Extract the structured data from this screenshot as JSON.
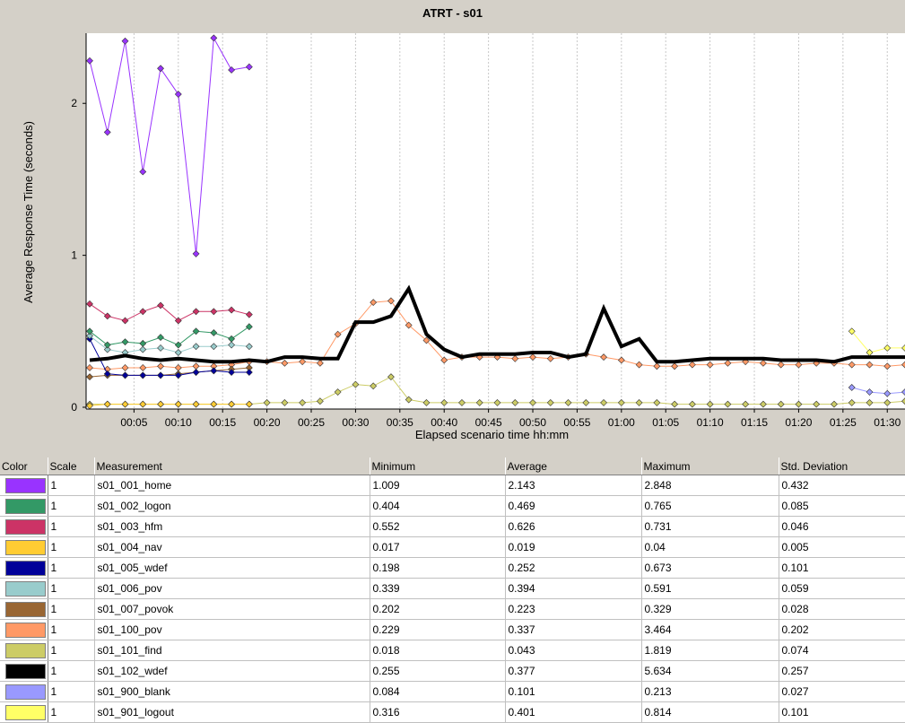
{
  "chart_data": {
    "type": "line",
    "title": "ATRT - s01",
    "xlabel": "Elapsed scenario time hh:mm",
    "ylabel": "Average Response Time (seconds)",
    "xlim": [
      0,
      92
    ],
    "ylim": [
      0,
      2.45
    ],
    "y_ticks": [
      0,
      1,
      2
    ],
    "x_ticks": [
      "00:05",
      "00:10",
      "00:15",
      "00:20",
      "00:25",
      "00:30",
      "00:35",
      "00:40",
      "00:45",
      "00:50",
      "00:55",
      "01:00",
      "01:05",
      "01:10",
      "01:15",
      "01:20",
      "01:25",
      "01:30"
    ],
    "grid": true,
    "series": [
      {
        "name": "s01_001_home",
        "color": "#9933ff",
        "x": [
          0,
          2,
          4,
          6,
          8,
          10,
          12,
          14,
          16,
          18
        ],
        "values": [
          2.28,
          1.81,
          2.41,
          1.55,
          2.23,
          2.06,
          1.01,
          2.43,
          2.22,
          2.24
        ]
      },
      {
        "name": "s01_002_logon",
        "color": "#339966",
        "x": [
          0,
          2,
          4,
          6,
          8,
          10,
          12,
          14,
          16,
          18
        ],
        "values": [
          0.5,
          0.41,
          0.43,
          0.42,
          0.46,
          0.41,
          0.5,
          0.49,
          0.45,
          0.53
        ]
      },
      {
        "name": "s01_003_hfm",
        "color": "#cc3366",
        "x": [
          0,
          2,
          4,
          6,
          8,
          10,
          12,
          14,
          16,
          18
        ],
        "values": [
          0.68,
          0.6,
          0.57,
          0.63,
          0.67,
          0.57,
          0.63,
          0.63,
          0.64,
          0.61
        ]
      },
      {
        "name": "s01_004_nav",
        "color": "#ffcc33",
        "x": [
          0,
          2,
          4,
          6,
          8,
          10,
          12,
          14,
          16,
          18
        ],
        "values": [
          0.01,
          0.02,
          0.02,
          0.02,
          0.02,
          0.02,
          0.02,
          0.02,
          0.02,
          0.02
        ]
      },
      {
        "name": "s01_005_wdef",
        "color": "#000099",
        "x": [
          0,
          2,
          4,
          6,
          8,
          10,
          12,
          14,
          16,
          18
        ],
        "values": [
          0.45,
          0.22,
          0.21,
          0.21,
          0.21,
          0.21,
          0.23,
          0.24,
          0.23,
          0.23
        ]
      },
      {
        "name": "s01_006_pov",
        "color": "#99cccc",
        "x": [
          0,
          2,
          4,
          6,
          8,
          10,
          12,
          14,
          16,
          18
        ],
        "values": [
          0.47,
          0.38,
          0.36,
          0.38,
          0.39,
          0.36,
          0.4,
          0.4,
          0.41,
          0.4
        ]
      },
      {
        "name": "s01_007_povok",
        "color": "#996633",
        "x": [
          0,
          2,
          4,
          6,
          8,
          10,
          12,
          14,
          16,
          18
        ],
        "values": [
          0.2,
          0.21,
          0.21,
          0.21,
          0.21,
          0.22,
          0.23,
          0.24,
          0.25,
          0.26
        ]
      },
      {
        "name": "s01_100_pov",
        "color": "#ff9966",
        "x": [
          0,
          2,
          4,
          6,
          8,
          10,
          12,
          14,
          16,
          18,
          20,
          22,
          24,
          26,
          28,
          30,
          32,
          34,
          36,
          38,
          40,
          42,
          44,
          46,
          48,
          50,
          52,
          54,
          56,
          58,
          60,
          62,
          64,
          66,
          68,
          70,
          72,
          74,
          76,
          78,
          80,
          82,
          84,
          86,
          88,
          90,
          92
        ],
        "values": [
          0.26,
          0.25,
          0.26,
          0.26,
          0.27,
          0.26,
          0.27,
          0.27,
          0.28,
          0.3,
          0.3,
          0.29,
          0.3,
          0.29,
          0.48,
          0.55,
          0.69,
          0.7,
          0.54,
          0.44,
          0.31,
          0.33,
          0.33,
          0.33,
          0.32,
          0.33,
          0.32,
          0.33,
          0.35,
          0.33,
          0.31,
          0.28,
          0.27,
          0.27,
          0.28,
          0.28,
          0.29,
          0.3,
          0.29,
          0.28,
          0.28,
          0.29,
          0.29,
          0.28,
          0.28,
          0.27,
          0.28
        ]
      },
      {
        "name": "s01_101_find",
        "color": "#cccc66",
        "x": [
          0,
          2,
          4,
          6,
          8,
          10,
          12,
          14,
          16,
          18,
          20,
          22,
          24,
          26,
          28,
          30,
          32,
          34,
          36,
          38,
          40,
          42,
          44,
          46,
          48,
          50,
          52,
          54,
          56,
          58,
          60,
          62,
          64,
          66,
          68,
          70,
          72,
          74,
          76,
          78,
          80,
          82,
          84,
          86,
          88,
          90,
          92
        ],
        "values": [
          0.02,
          0.02,
          0.02,
          0.02,
          0.02,
          0.02,
          0.02,
          0.02,
          0.02,
          0.02,
          0.03,
          0.03,
          0.03,
          0.04,
          0.1,
          0.15,
          0.14,
          0.2,
          0.05,
          0.03,
          0.03,
          0.03,
          0.03,
          0.03,
          0.03,
          0.03,
          0.03,
          0.03,
          0.03,
          0.03,
          0.03,
          0.03,
          0.03,
          0.02,
          0.02,
          0.02,
          0.02,
          0.02,
          0.02,
          0.02,
          0.02,
          0.02,
          0.02,
          0.03,
          0.03,
          0.03,
          0.04
        ]
      },
      {
        "name": "s01_102_wdef",
        "color": "#000000",
        "x": [
          0,
          2,
          4,
          6,
          8,
          10,
          12,
          14,
          16,
          18,
          20,
          22,
          24,
          26,
          28,
          30,
          32,
          34,
          36,
          38,
          40,
          42,
          44,
          46,
          48,
          50,
          52,
          54,
          56,
          58,
          60,
          62,
          64,
          66,
          68,
          70,
          72,
          74,
          76,
          78,
          80,
          82,
          84,
          86,
          88,
          90,
          92
        ],
        "values": [
          0.31,
          0.32,
          0.34,
          0.32,
          0.31,
          0.32,
          0.31,
          0.3,
          0.3,
          0.31,
          0.3,
          0.33,
          0.33,
          0.32,
          0.32,
          0.56,
          0.56,
          0.6,
          0.78,
          0.48,
          0.38,
          0.33,
          0.35,
          0.35,
          0.35,
          0.36,
          0.36,
          0.33,
          0.35,
          0.65,
          0.4,
          0.45,
          0.3,
          0.3,
          0.31,
          0.32,
          0.32,
          0.32,
          0.32,
          0.31,
          0.31,
          0.31,
          0.3,
          0.33,
          0.33,
          0.33,
          0.33
        ]
      },
      {
        "name": "s01_900_blank",
        "color": "#9999ff",
        "x": [
          86,
          88,
          90,
          92
        ],
        "values": [
          0.13,
          0.1,
          0.09,
          0.1
        ]
      },
      {
        "name": "s01_901_logout",
        "color": "#ffff66",
        "x": [
          86,
          88,
          90,
          92
        ],
        "values": [
          0.5,
          0.36,
          0.39,
          0.39
        ]
      }
    ]
  },
  "legend_table": {
    "headers": [
      "Color",
      "Scale",
      "Measurement",
      "Minimum",
      "Average",
      "Maximum",
      "Std. Deviation"
    ],
    "rows": [
      {
        "color": "#9933ff",
        "scale": "1",
        "measurement": "s01_001_home",
        "min": "1.009",
        "avg": "2.143",
        "max": "2.848",
        "std": "0.432"
      },
      {
        "color": "#339966",
        "scale": "1",
        "measurement": "s01_002_logon",
        "min": "0.404",
        "avg": "0.469",
        "max": "0.765",
        "std": "0.085"
      },
      {
        "color": "#cc3366",
        "scale": "1",
        "measurement": "s01_003_hfm",
        "min": "0.552",
        "avg": "0.626",
        "max": "0.731",
        "std": "0.046"
      },
      {
        "color": "#ffcc33",
        "scale": "1",
        "measurement": "s01_004_nav",
        "min": "0.017",
        "avg": "0.019",
        "max": "0.04",
        "std": "0.005"
      },
      {
        "color": "#000099",
        "scale": "1",
        "measurement": "s01_005_wdef",
        "min": "0.198",
        "avg": "0.252",
        "max": "0.673",
        "std": "0.101"
      },
      {
        "color": "#99cccc",
        "scale": "1",
        "measurement": "s01_006_pov",
        "min": "0.339",
        "avg": "0.394",
        "max": "0.591",
        "std": "0.059"
      },
      {
        "color": "#996633",
        "scale": "1",
        "measurement": "s01_007_povok",
        "min": "0.202",
        "avg": "0.223",
        "max": "0.329",
        "std": "0.028"
      },
      {
        "color": "#ff9966",
        "scale": "1",
        "measurement": "s01_100_pov",
        "min": "0.229",
        "avg": "0.337",
        "max": "3.464",
        "std": "0.202"
      },
      {
        "color": "#cccc66",
        "scale": "1",
        "measurement": "s01_101_find",
        "min": "0.018",
        "avg": "0.043",
        "max": "1.819",
        "std": "0.074"
      },
      {
        "color": "#000000",
        "scale": "1",
        "measurement": "s01_102_wdef",
        "min": "0.255",
        "avg": "0.377",
        "max": "5.634",
        "std": "0.257"
      },
      {
        "color": "#9999ff",
        "scale": "1",
        "measurement": "s01_900_blank",
        "min": "0.084",
        "avg": "0.101",
        "max": "0.213",
        "std": "0.027"
      },
      {
        "color": "#ffff66",
        "scale": "1",
        "measurement": "s01_901_logout",
        "min": "0.316",
        "avg": "0.401",
        "max": "0.814",
        "std": "0.101"
      }
    ]
  }
}
